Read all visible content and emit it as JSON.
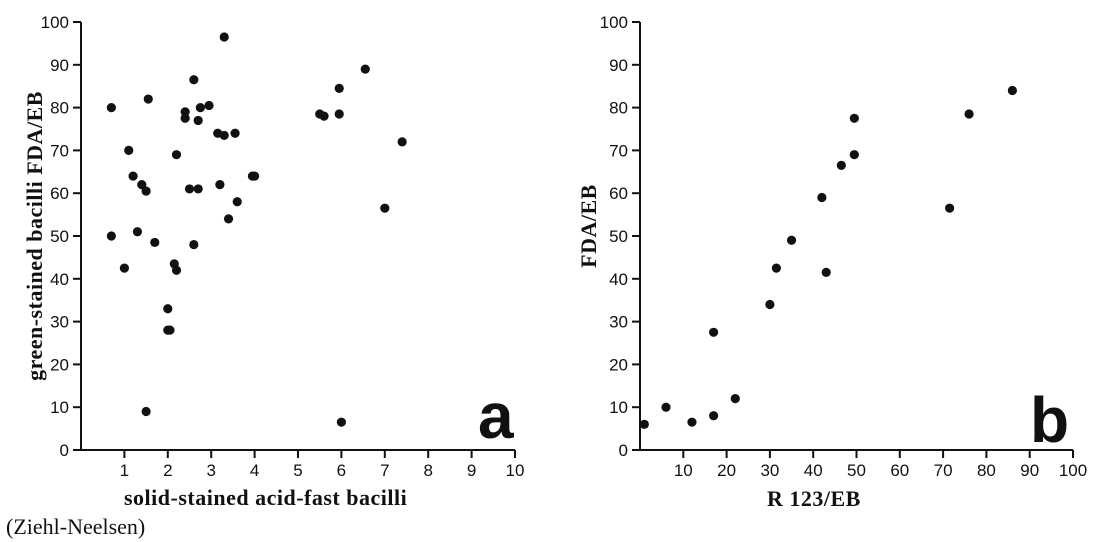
{
  "chart_data": [
    {
      "type": "scatter",
      "panel_label": "a",
      "ylabel": "green-stained bacilli FDA/EB",
      "xlabel": "solid-stained acid-fast bacilli",
      "xlabel_line2": "(Ziehl-Neelsen)",
      "xlim": [
        0,
        10
      ],
      "ylim": [
        0,
        100
      ],
      "xticks": [
        1,
        2,
        3,
        4,
        5,
        6,
        7,
        8,
        9,
        10
      ],
      "yticks": [
        0,
        10,
        20,
        30,
        40,
        50,
        60,
        70,
        80,
        90,
        100
      ],
      "points": [
        {
          "x": 0.7,
          "y": 80
        },
        {
          "x": 0.7,
          "y": 50
        },
        {
          "x": 1.0,
          "y": 42.5
        },
        {
          "x": 1.1,
          "y": 70
        },
        {
          "x": 1.2,
          "y": 64
        },
        {
          "x": 1.3,
          "y": 51
        },
        {
          "x": 1.4,
          "y": 62
        },
        {
          "x": 1.5,
          "y": 60.5
        },
        {
          "x": 1.55,
          "y": 82
        },
        {
          "x": 1.5,
          "y": 9
        },
        {
          "x": 1.7,
          "y": 48.5
        },
        {
          "x": 2.0,
          "y": 33
        },
        {
          "x": 2.0,
          "y": 28
        },
        {
          "x": 2.05,
          "y": 28
        },
        {
          "x": 2.15,
          "y": 43.5
        },
        {
          "x": 2.2,
          "y": 42
        },
        {
          "x": 2.2,
          "y": 69
        },
        {
          "x": 2.4,
          "y": 77.5
        },
        {
          "x": 2.4,
          "y": 79
        },
        {
          "x": 2.5,
          "y": 61
        },
        {
          "x": 2.6,
          "y": 86.5
        },
        {
          "x": 2.6,
          "y": 48
        },
        {
          "x": 2.7,
          "y": 77
        },
        {
          "x": 2.7,
          "y": 61
        },
        {
          "x": 2.75,
          "y": 80
        },
        {
          "x": 2.95,
          "y": 80.5
        },
        {
          "x": 3.15,
          "y": 74
        },
        {
          "x": 3.2,
          "y": 62
        },
        {
          "x": 3.3,
          "y": 73.5
        },
        {
          "x": 3.3,
          "y": 96.5
        },
        {
          "x": 3.4,
          "y": 54
        },
        {
          "x": 3.55,
          "y": 74
        },
        {
          "x": 3.6,
          "y": 58
        },
        {
          "x": 3.95,
          "y": 64
        },
        {
          "x": 4.0,
          "y": 64
        },
        {
          "x": 5.5,
          "y": 78.5
        },
        {
          "x": 5.6,
          "y": 78
        },
        {
          "x": 5.95,
          "y": 84.5
        },
        {
          "x": 5.95,
          "y": 78.5
        },
        {
          "x": 6.0,
          "y": 6.5
        },
        {
          "x": 6.55,
          "y": 89
        },
        {
          "x": 7.0,
          "y": 56.5
        },
        {
          "x": 7.4,
          "y": 72
        }
      ]
    },
    {
      "type": "scatter",
      "panel_label": "b",
      "ylabel": "FDA/EB",
      "xlabel": "R 123/EB",
      "xlim": [
        0,
        100
      ],
      "ylim": [
        0,
        100
      ],
      "xticks": [
        10,
        20,
        30,
        40,
        50,
        60,
        70,
        80,
        90,
        100
      ],
      "yticks": [
        0,
        10,
        20,
        30,
        40,
        50,
        60,
        70,
        80,
        90,
        100
      ],
      "points": [
        {
          "x": 1,
          "y": 6
        },
        {
          "x": 6,
          "y": 10
        },
        {
          "x": 12,
          "y": 6.5
        },
        {
          "x": 17,
          "y": 8
        },
        {
          "x": 17,
          "y": 27.5
        },
        {
          "x": 22,
          "y": 12
        },
        {
          "x": 30,
          "y": 34
        },
        {
          "x": 31.5,
          "y": 42.5
        },
        {
          "x": 35,
          "y": 49
        },
        {
          "x": 42,
          "y": 59
        },
        {
          "x": 43,
          "y": 41.5
        },
        {
          "x": 46.5,
          "y": 66.5
        },
        {
          "x": 49.5,
          "y": 69
        },
        {
          "x": 49.5,
          "y": 77.5
        },
        {
          "x": 71.5,
          "y": 56.5
        },
        {
          "x": 76,
          "y": 78.5
        },
        {
          "x": 86,
          "y": 84
        }
      ]
    }
  ]
}
